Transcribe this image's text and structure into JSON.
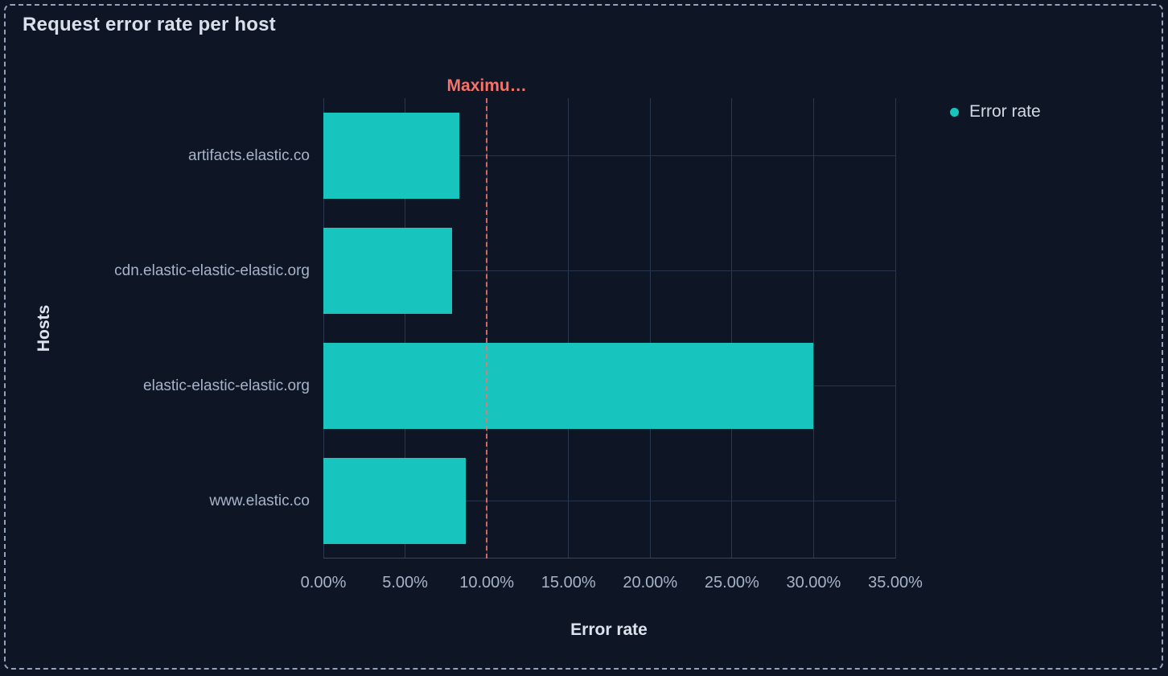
{
  "panel": {
    "title": "Request error rate per host"
  },
  "legend": {
    "position": "right",
    "items": [
      {
        "label": "Error rate",
        "color": "#17c4be"
      }
    ]
  },
  "chart_data": {
    "type": "bar",
    "orientation": "horizontal",
    "title": "Request error rate per host",
    "categories": [
      "artifacts.elastic.co",
      "cdn.elastic-elastic-elastic.org",
      "elastic-elastic-elastic.org",
      "www.elastic.co"
    ],
    "series": [
      {
        "name": "Error rate",
        "color": "#17c4be",
        "unit": "percent",
        "values": [
          8.3,
          7.9,
          30,
          8.7
        ]
      }
    ],
    "xlabel": "Error rate",
    "ylabel": "Hosts",
    "xlim": [
      0,
      35
    ],
    "x_tick_values": [
      0,
      5,
      10,
      15,
      20,
      25,
      30,
      35
    ],
    "x_ticks": [
      "0.00%",
      "5.00%",
      "10.00%",
      "15.00%",
      "20.00%",
      "25.00%",
      "30.00%",
      "35.00%"
    ],
    "grid": true,
    "legend_position": "right",
    "threshold": {
      "value": 10,
      "label": "Maximu…",
      "color": "#f6726a",
      "style": "dashed"
    }
  },
  "colors": {
    "background": "#0e1625",
    "panel_border": "#95a3ba",
    "bar": "#17c4be",
    "threshold": "#f6726a",
    "gridline": "#2b374e",
    "tick_text": "#a7b3c7",
    "title_text": "#d9e0ec"
  }
}
